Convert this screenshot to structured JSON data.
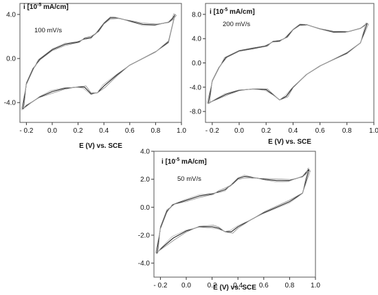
{
  "chart_data": [
    {
      "type": "line",
      "title": "",
      "ylabel_prefix": "i [10",
      "ylabel_exp": "-5",
      "ylabel_suffix": " mA/cm]",
      "rate_label": "100 mV/s",
      "xlabel": "E (V) vs. SCE",
      "xlim": [
        -0.25,
        1.0
      ],
      "ylim": [
        -5.8,
        5.0
      ],
      "xticks": [
        "- 0.2",
        "0.0",
        "0.2",
        "0.4",
        "0.6",
        "0.8",
        "1.0"
      ],
      "xtick_values": [
        -0.2,
        0.0,
        0.2,
        0.4,
        0.6,
        0.8,
        1.0
      ],
      "yticks": [
        "4.0",
        "0.0",
        "-4.0"
      ],
      "ytick_values": [
        4.0,
        0.0,
        -4.0
      ],
      "series": [
        {
          "values": {
            "upper": [
              [
                -0.23,
                -4.6
              ],
              [
                -0.2,
                -2.3
              ],
              [
                -0.15,
                -1.0
              ],
              [
                -0.1,
                -0.1
              ],
              [
                0.0,
                0.8
              ],
              [
                0.1,
                1.3
              ],
              [
                0.2,
                1.5
              ],
              [
                0.25,
                1.8
              ],
              [
                0.3,
                1.9
              ],
              [
                0.35,
                2.4
              ],
              [
                0.4,
                3.2
              ],
              [
                0.45,
                3.7
              ],
              [
                0.5,
                3.7
              ],
              [
                0.6,
                3.4
              ],
              [
                0.7,
                3.1
              ],
              [
                0.8,
                3.05
              ],
              [
                0.9,
                3.3
              ],
              [
                0.93,
                3.6
              ],
              [
                0.95,
                4.0
              ]
            ],
            "lower": [
              [
                0.95,
                4.0
              ],
              [
                0.9,
                1.5
              ],
              [
                0.8,
                0.6
              ],
              [
                0.6,
                -0.6
              ],
              [
                0.5,
                -1.5
              ],
              [
                0.4,
                -2.5
              ],
              [
                0.35,
                -3.1
              ],
              [
                0.3,
                -3.2
              ],
              [
                0.25,
                -2.6
              ],
              [
                0.2,
                -2.6
              ],
              [
                0.1,
                -2.7
              ],
              [
                0.0,
                -3.0
              ],
              [
                -0.1,
                -3.5
              ],
              [
                -0.2,
                -4.3
              ],
              [
                -0.23,
                -4.6
              ]
            ]
          }
        }
      ]
    },
    {
      "type": "line",
      "title": "",
      "ylabel_prefix": "i [10",
      "ylabel_exp": "-5",
      "ylabel_suffix": " mA/cm]",
      "rate_label": "200 mV/s",
      "xlabel": "E (V) vs. SCE",
      "xlim": [
        -0.25,
        1.0
      ],
      "ylim": [
        -9.8,
        9.8
      ],
      "xticks": [
        "- 0.2",
        "0.0",
        "0.2",
        "0.4",
        "0.6",
        "0.8",
        "1.0"
      ],
      "xtick_values": [
        -0.2,
        0.0,
        0.2,
        0.4,
        0.6,
        0.8,
        1.0
      ],
      "yticks": [
        "8.0",
        "4.0",
        "0.0",
        "-4.0",
        "-8.0"
      ],
      "ytick_values": [
        8.0,
        4.0,
        0.0,
        -4.0,
        -8.0
      ],
      "series": [
        {
          "values": {
            "upper": [
              [
                -0.23,
                -6.7
              ],
              [
                -0.2,
                -3.0
              ],
              [
                -0.15,
                -0.8
              ],
              [
                -0.1,
                0.9
              ],
              [
                0.0,
                2.0
              ],
              [
                0.1,
                2.4
              ],
              [
                0.2,
                2.8
              ],
              [
                0.25,
                3.5
              ],
              [
                0.3,
                3.6
              ],
              [
                0.35,
                4.2
              ],
              [
                0.4,
                5.5
              ],
              [
                0.45,
                6.3
              ],
              [
                0.5,
                6.3
              ],
              [
                0.6,
                5.6
              ],
              [
                0.7,
                5.1
              ],
              [
                0.8,
                5.1
              ],
              [
                0.9,
                5.7
              ],
              [
                0.95,
                6.5
              ]
            ],
            "lower": [
              [
                0.95,
                6.5
              ],
              [
                0.9,
                3.3
              ],
              [
                0.8,
                1.6
              ],
              [
                0.6,
                -0.5
              ],
              [
                0.5,
                -1.9
              ],
              [
                0.4,
                -4.0
              ],
              [
                0.35,
                -5.5
              ],
              [
                0.3,
                -6.1
              ],
              [
                0.25,
                -5.2
              ],
              [
                0.2,
                -4.4
              ],
              [
                0.1,
                -4.3
              ],
              [
                0.0,
                -4.5
              ],
              [
                -0.1,
                -5.2
              ],
              [
                -0.2,
                -6.3
              ],
              [
                -0.23,
                -6.7
              ]
            ]
          }
        }
      ]
    },
    {
      "type": "line",
      "title": "",
      "ylabel_prefix": "i [10",
      "ylabel_exp": "-5",
      "ylabel_suffix": " mA/cm]",
      "rate_label": "50 mV/s",
      "xlabel": "E (V) vs. SCE",
      "xlim": [
        -0.25,
        1.0
      ],
      "ylim": [
        -5.0,
        4.0
      ],
      "xticks": [
        "- 0.2",
        "0.0",
        "0.2",
        "0.4",
        "0.6",
        "0.8",
        "1.0"
      ],
      "xtick_values": [
        -0.2,
        0.0,
        0.2,
        0.4,
        0.6,
        0.8,
        1.0
      ],
      "yticks": [
        "4.0",
        "2.0",
        "0.0",
        "-2.0",
        "-4.0"
      ],
      "ytick_values": [
        4.0,
        2.0,
        0.0,
        -2.0,
        -4.0
      ],
      "series": [
        {
          "values": {
            "upper": [
              [
                -0.23,
                -3.3
              ],
              [
                -0.2,
                -1.5
              ],
              [
                -0.15,
                -0.3
              ],
              [
                -0.1,
                0.2
              ],
              [
                0.0,
                0.5
              ],
              [
                0.1,
                0.8
              ],
              [
                0.2,
                0.95
              ],
              [
                0.25,
                1.1
              ],
              [
                0.3,
                1.25
              ],
              [
                0.35,
                1.6
              ],
              [
                0.4,
                2.05
              ],
              [
                0.45,
                2.2
              ],
              [
                0.5,
                2.15
              ],
              [
                0.6,
                2.0
              ],
              [
                0.7,
                1.9
              ],
              [
                0.8,
                1.9
              ],
              [
                0.9,
                2.2
              ],
              [
                0.95,
                2.7
              ]
            ],
            "lower": [
              [
                0.95,
                2.7
              ],
              [
                0.9,
                1.0
              ],
              [
                0.8,
                0.4
              ],
              [
                0.6,
                -0.4
              ],
              [
                0.5,
                -0.9
              ],
              [
                0.4,
                -1.4
              ],
              [
                0.35,
                -1.75
              ],
              [
                0.3,
                -1.75
              ],
              [
                0.25,
                -1.5
              ],
              [
                0.2,
                -1.4
              ],
              [
                0.1,
                -1.4
              ],
              [
                0.0,
                -1.7
              ],
              [
                -0.1,
                -2.2
              ],
              [
                -0.2,
                -3.0
              ],
              [
                -0.23,
                -3.3
              ]
            ]
          }
        }
      ]
    }
  ]
}
